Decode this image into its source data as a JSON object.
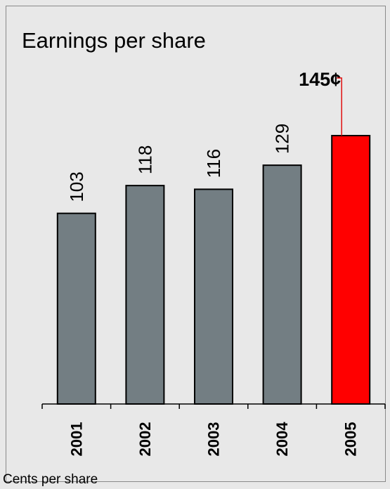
{
  "header": {
    "title": "Earnings per share"
  },
  "footer": {
    "note": "Cents per share"
  },
  "chart_data": {
    "type": "bar",
    "title": "Earnings per share",
    "categories": [
      "2001",
      "2002",
      "2003",
      "2004",
      "2005"
    ],
    "values": [
      103,
      118,
      116,
      129,
      145
    ],
    "value_labels": [
      "103",
      "118",
      "116",
      "129",
      "145¢"
    ],
    "highlight_index": 4,
    "colors": {
      "bar": "#737e83",
      "highlight": "#ff0000",
      "leader_line": "#e01010"
    },
    "xlabel": "",
    "ylabel": "",
    "ylim": [
      0,
      145
    ],
    "grid": false,
    "legend": "none"
  }
}
